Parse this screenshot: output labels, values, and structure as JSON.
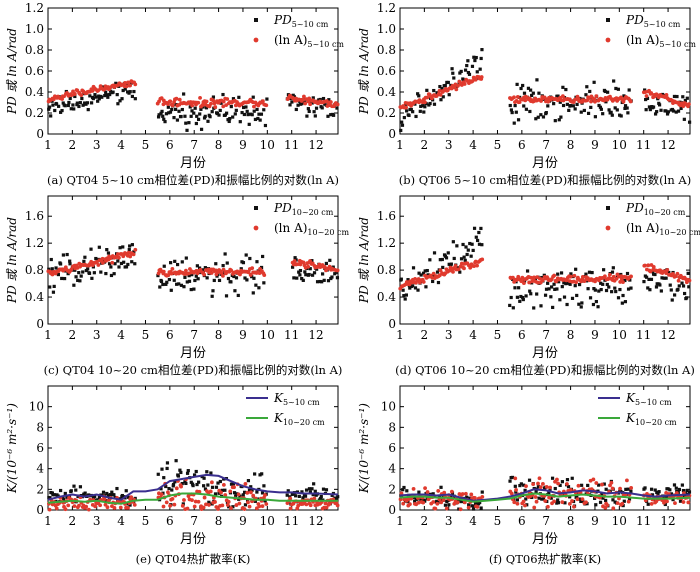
{
  "colors": {
    "black": "#111111",
    "red": "#e03a2e",
    "blue": "#3a2f8f",
    "green": "#3aa83a"
  },
  "chart_data": [
    {
      "id": "a",
      "type": "scatter",
      "caption": "(a) QT04 5~10 cm相位差(PD)和振幅比例的对数(ln A)",
      "xlabel": "月份",
      "ylabel": "PD 或 ln A/rad",
      "xlim": [
        1,
        12.9
      ],
      "ylim": [
        0,
        1.2
      ],
      "xticks": [
        1,
        2,
        3,
        4,
        5,
        6,
        7,
        8,
        9,
        10,
        11,
        12
      ],
      "yticks": [
        0,
        0.2,
        0.4,
        0.6,
        0.8,
        1.0,
        1.2
      ],
      "ytick_labels": [
        "0",
        "0.2",
        "0.4",
        "0.6",
        "0.8",
        "1.0",
        "1.2"
      ],
      "legend_pos": "top-right",
      "gaps": [
        [
          4.6,
          5.5
        ],
        [
          10.0,
          10.8
        ]
      ],
      "series": [
        {
          "name": "PD",
          "sub": "5~10 cm",
          "marker": "square",
          "color": "black",
          "segments": [
            {
              "x": [
                1,
                4.6
              ],
              "base": [
                0.24,
                0.42
              ],
              "scatter": 0.1
            },
            {
              "x": [
                5.5,
                10.0
              ],
              "base": [
                0.2,
                0.22
              ],
              "scatter": 0.14
            },
            {
              "x": [
                10.8,
                12.9
              ],
              "base": [
                0.3,
                0.22
              ],
              "scatter": 0.1
            }
          ]
        },
        {
          "name": "(ln A)",
          "sub": "5~10 cm",
          "marker": "circle",
          "color": "red",
          "segments": [
            {
              "x": [
                1,
                4.6
              ],
              "base": [
                0.33,
                0.5
              ],
              "scatter": 0.03
            },
            {
              "x": [
                5.5,
                10.0
              ],
              "base": [
                0.3,
                0.3
              ],
              "scatter": 0.035
            },
            {
              "x": [
                10.8,
                12.9
              ],
              "base": [
                0.35,
                0.28
              ],
              "scatter": 0.03
            }
          ]
        }
      ]
    },
    {
      "id": "b",
      "type": "scatter",
      "caption": "(b) QT06 5~10 cm相位差(PD)和振幅比例的对数(ln A)",
      "xlabel": "月份",
      "ylabel": "PD 或 ln A/rad",
      "xlim": [
        1,
        12.9
      ],
      "ylim": [
        0,
        1.2
      ],
      "xticks": [
        1,
        2,
        3,
        4,
        5,
        6,
        7,
        8,
        9,
        10,
        11,
        12
      ],
      "yticks": [
        0,
        0.2,
        0.4,
        0.6,
        0.8,
        1.0,
        1.2
      ],
      "ytick_labels": [
        "0",
        "0.2",
        "0.4",
        "0.6",
        "0.8",
        "1.0",
        "1.2"
      ],
      "legend_pos": "top-right",
      "gaps": [
        [
          4.4,
          5.5
        ],
        [
          10.5,
          11.0
        ]
      ],
      "series": [
        {
          "name": "PD",
          "sub": "5~10 cm",
          "marker": "square",
          "color": "black",
          "segments": [
            {
              "x": [
                1,
                4.4
              ],
              "base": [
                0.12,
                0.7
              ],
              "scatter": 0.12
            },
            {
              "x": [
                5.5,
                10.5
              ],
              "base": [
                0.3,
                0.3
              ],
              "scatter": 0.18
            },
            {
              "x": [
                11.0,
                12.9
              ],
              "base": [
                0.3,
                0.25
              ],
              "scatter": 0.12
            }
          ]
        },
        {
          "name": "(ln A)",
          "sub": "5~10 cm",
          "marker": "circle",
          "color": "red",
          "segments": [
            {
              "x": [
                1,
                4.4
              ],
              "base": [
                0.25,
                0.55
              ],
              "scatter": 0.03
            },
            {
              "x": [
                5.5,
                10.5
              ],
              "base": [
                0.33,
                0.33
              ],
              "scatter": 0.025
            },
            {
              "x": [
                11.0,
                12.9
              ],
              "base": [
                0.4,
                0.27
              ],
              "scatter": 0.03
            }
          ]
        }
      ]
    },
    {
      "id": "c",
      "type": "scatter",
      "caption": "(c) QT04 10~20 cm相位差(PD)和振幅比例的对数(ln A)",
      "xlabel": "月份",
      "ylabel": "PD 或 ln A/rad",
      "xlim": [
        1,
        12.9
      ],
      "ylim": [
        0,
        1.9
      ],
      "xticks": [
        1,
        2,
        3,
        4,
        5,
        6,
        7,
        8,
        9,
        10,
        11,
        12
      ],
      "yticks": [
        0,
        0.4,
        0.8,
        1.2,
        1.6
      ],
      "ytick_labels": [
        "0",
        "0.4",
        "0.8",
        "1.2",
        "1.6"
      ],
      "legend_pos": "top-right",
      "gaps": [
        [
          4.6,
          5.5
        ],
        [
          9.9,
          11.0
        ]
      ],
      "series": [
        {
          "name": "PD",
          "sub": "10~20 cm",
          "marker": "square",
          "color": "black",
          "segments": [
            {
              "x": [
                1,
                4.6
              ],
              "base": [
                0.7,
                1.0
              ],
              "scatter": 0.22
            },
            {
              "x": [
                5.5,
                9.9
              ],
              "base": [
                0.72,
                0.72
              ],
              "scatter": 0.28
            },
            {
              "x": [
                11.0,
                12.9
              ],
              "base": [
                0.85,
                0.75
              ],
              "scatter": 0.18
            }
          ]
        },
        {
          "name": "(ln A)",
          "sub": "10~20 cm",
          "marker": "circle",
          "color": "red",
          "segments": [
            {
              "x": [
                1,
                4.6
              ],
              "base": [
                0.75,
                1.05
              ],
              "scatter": 0.05
            },
            {
              "x": [
                5.5,
                9.9
              ],
              "base": [
                0.77,
                0.78
              ],
              "scatter": 0.05
            },
            {
              "x": [
                11.0,
                12.9
              ],
              "base": [
                0.92,
                0.8
              ],
              "scatter": 0.05
            }
          ]
        }
      ]
    },
    {
      "id": "d",
      "type": "scatter",
      "caption": "(d) QT06 10~20 cm相位差(PD)和振幅比例的对数(ln A)",
      "xlabel": "月份",
      "ylabel": "PD 或 ln A/rad",
      "xlim": [
        1,
        12.9
      ],
      "ylim": [
        0,
        1.9
      ],
      "xticks": [
        1,
        2,
        3,
        4,
        5,
        6,
        7,
        8,
        9,
        10,
        11,
        12
      ],
      "yticks": [
        0,
        0.4,
        0.8,
        1.2,
        1.6
      ],
      "ytick_labels": [
        "0",
        "0.4",
        "0.8",
        "1.2",
        "1.6"
      ],
      "legend_pos": "top-right",
      "gaps": [
        [
          4.4,
          5.5
        ],
        [
          10.5,
          11.0
        ]
      ],
      "series": [
        {
          "name": "PD",
          "sub": "10~20 cm",
          "marker": "square",
          "color": "black",
          "segments": [
            {
              "x": [
                1,
                4.4
              ],
              "base": [
                0.45,
                1.2
              ],
              "scatter": 0.25
            },
            {
              "x": [
                5.5,
                10.5
              ],
              "base": [
                0.5,
                0.55
              ],
              "scatter": 0.28
            },
            {
              "x": [
                11.0,
                12.9
              ],
              "base": [
                0.7,
                0.55
              ],
              "scatter": 0.22
            }
          ]
        },
        {
          "name": "(ln A)",
          "sub": "10~20 cm",
          "marker": "circle",
          "color": "red",
          "segments": [
            {
              "x": [
                1,
                4.4
              ],
              "base": [
                0.55,
                0.95
              ],
              "scatter": 0.05
            },
            {
              "x": [
                5.5,
                10.5
              ],
              "base": [
                0.65,
                0.68
              ],
              "scatter": 0.05
            },
            {
              "x": [
                11.0,
                12.9
              ],
              "base": [
                0.85,
                0.65
              ],
              "scatter": 0.05
            }
          ]
        }
      ]
    },
    {
      "id": "e",
      "type": "scatter",
      "caption": "(e) QT04热扩散率(K)",
      "xlabel": "月份",
      "ylabel": "K/(10⁻⁶ m²·s⁻¹)",
      "xlim": [
        1,
        12.9
      ],
      "ylim": [
        0,
        12
      ],
      "xticks": [
        1,
        2,
        3,
        4,
        5,
        6,
        7,
        8,
        9,
        10,
        11,
        12
      ],
      "yticks": [
        0,
        2,
        4,
        6,
        8,
        10
      ],
      "ytick_labels": [
        "0",
        "2",
        "4",
        "6",
        "8",
        "10"
      ],
      "legend_pos": "top-right",
      "gaps": [],
      "series": [
        {
          "name": "K",
          "sub": "5~10 cm",
          "marker": "square",
          "color": "black",
          "segments": [
            {
              "x": [
                1,
                4.6
              ],
              "base": [
                1.4,
                1.2
              ],
              "scatter": 0.8
            },
            {
              "x": [
                5.5,
                10.0
              ],
              "base": [
                3.0,
                1.5
              ],
              "scatter": 1.8
            },
            {
              "x": [
                10.8,
                12.9
              ],
              "base": [
                1.5,
                1.5
              ],
              "scatter": 0.8
            }
          ]
        },
        {
          "name": "K",
          "sub": "10~20 cm",
          "marker": "circle",
          "color": "red",
          "segments": [
            {
              "x": [
                1,
                4.6
              ],
              "base": [
                0.8,
                0.6
              ],
              "scatter": 0.6
            },
            {
              "x": [
                5.5,
                10.0
              ],
              "base": [
                1.5,
                0.8
              ],
              "scatter": 1.5
            },
            {
              "x": [
                10.8,
                12.9
              ],
              "base": [
                0.7,
                0.7
              ],
              "scatter": 0.5
            }
          ]
        }
      ],
      "lines": [
        {
          "name": "K",
          "sub": "5~10 cm",
          "color": "blue",
          "x": [
            1,
            1.5,
            2,
            2.5,
            3,
            3.5,
            4,
            4.5,
            5,
            5.5,
            6,
            6.5,
            7,
            7.5,
            8,
            8.5,
            9,
            9.5,
            10,
            10.5,
            11,
            11.5,
            12,
            12.9
          ],
          "y": [
            1.0,
            1.3,
            1.5,
            1.3,
            1.5,
            1.2,
            1.0,
            1.8,
            1.8,
            2.0,
            2.8,
            3.0,
            3.2,
            3.4,
            3.3,
            2.8,
            2.3,
            2.0,
            1.8,
            1.7,
            1.7,
            1.6,
            1.6,
            1.5
          ]
        },
        {
          "name": "K",
          "sub": "10~20 cm",
          "color": "green",
          "x": [
            1,
            1.5,
            2,
            2.5,
            3,
            3.5,
            4,
            4.5,
            5,
            5.5,
            6,
            6.5,
            7,
            7.5,
            8,
            8.5,
            9,
            9.5,
            10,
            10.5,
            11,
            11.5,
            12,
            12.9
          ],
          "y": [
            0.7,
            0.8,
            0.9,
            0.8,
            0.9,
            0.7,
            0.6,
            0.9,
            1.0,
            1.0,
            1.4,
            1.6,
            1.6,
            1.5,
            1.3,
            1.2,
            1.1,
            1.0,
            1.0,
            0.9,
            0.9,
            0.9,
            0.9,
            0.9
          ]
        }
      ]
    },
    {
      "id": "f",
      "type": "scatter",
      "caption": "(f) QT06热扩散率(K)",
      "xlabel": "月份",
      "ylabel": "K/(10⁻⁶ m²·s⁻¹)",
      "xlim": [
        1,
        12.9
      ],
      "ylim": [
        0,
        12
      ],
      "xticks": [
        1,
        2,
        3,
        4,
        5,
        6,
        7,
        8,
        9,
        10,
        11,
        12
      ],
      "yticks": [
        0,
        2,
        4,
        6,
        8,
        10
      ],
      "ytick_labels": [
        "0",
        "2",
        "4",
        "6",
        "8",
        "10"
      ],
      "legend_pos": "top-right",
      "gaps": [],
      "series": [
        {
          "name": "K",
          "sub": "5~10 cm",
          "marker": "square",
          "color": "black",
          "segments": [
            {
              "x": [
                1,
                4.4
              ],
              "base": [
                1.4,
                1.0
              ],
              "scatter": 0.9
            },
            {
              "x": [
                5.5,
                10.5
              ],
              "base": [
                1.8,
                1.5
              ],
              "scatter": 1.3
            },
            {
              "x": [
                11.0,
                12.9
              ],
              "base": [
                1.4,
                1.7
              ],
              "scatter": 0.8
            }
          ]
        },
        {
          "name": "K",
          "sub": "10~20 cm",
          "marker": "circle",
          "color": "red",
          "segments": [
            {
              "x": [
                1,
                4.4
              ],
              "base": [
                1.2,
                0.8
              ],
              "scatter": 0.9
            },
            {
              "x": [
                5.5,
                10.5
              ],
              "base": [
                1.5,
                1.3
              ],
              "scatter": 1.4
            },
            {
              "x": [
                11.0,
                12.9
              ],
              "base": [
                1.1,
                1.2
              ],
              "scatter": 0.6
            }
          ]
        }
      ],
      "lines": [
        {
          "name": "K",
          "sub": "5~10 cm",
          "color": "blue",
          "x": [
            1,
            1.5,
            2,
            2.5,
            3,
            3.5,
            4,
            4.5,
            5,
            5.5,
            6,
            6.5,
            7,
            7.5,
            8,
            8.5,
            9,
            9.5,
            10,
            10.5,
            11,
            11.5,
            12,
            12.9
          ],
          "y": [
            1.4,
            1.5,
            1.5,
            1.4,
            1.5,
            1.2,
            0.9,
            1.0,
            1.1,
            1.3,
            1.6,
            2.0,
            1.9,
            1.6,
            1.7,
            1.9,
            1.8,
            1.6,
            1.7,
            1.6,
            1.4,
            1.3,
            1.4,
            1.5
          ]
        },
        {
          "name": "K",
          "sub": "10~20 cm",
          "color": "green",
          "x": [
            1,
            1.5,
            2,
            2.5,
            3,
            3.5,
            4,
            4.5,
            5,
            5.5,
            6,
            6.5,
            7,
            7.5,
            8,
            8.5,
            9,
            9.5,
            10,
            10.5,
            11,
            11.5,
            12,
            12.9
          ],
          "y": [
            1.2,
            1.3,
            1.3,
            1.2,
            1.2,
            1.0,
            0.8,
            0.9,
            1.0,
            1.1,
            1.4,
            1.6,
            1.5,
            1.3,
            1.4,
            1.5,
            1.4,
            1.3,
            1.3,
            1.2,
            1.1,
            1.1,
            1.1,
            1.2
          ]
        }
      ]
    }
  ]
}
